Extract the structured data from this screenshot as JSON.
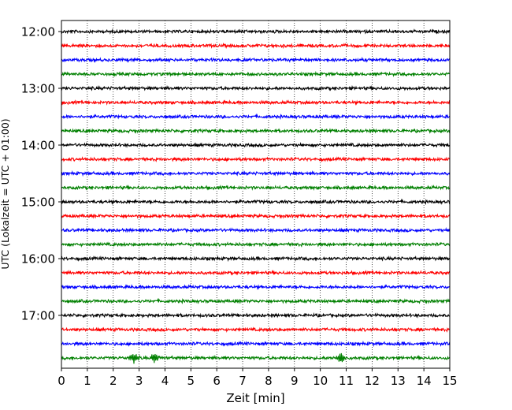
{
  "chart_data": {
    "type": "line",
    "title": "",
    "xlabel": "Zeit  [min]",
    "ylabel": "UTC (Lokalzeit = UTC + 01:00)",
    "xlim": [
      0,
      15
    ],
    "x_ticks": [
      0,
      1,
      2,
      3,
      4,
      5,
      6,
      7,
      8,
      9,
      10,
      11,
      12,
      13,
      14,
      15
    ],
    "x_tick_labels": [
      "0",
      "1",
      "2",
      "3",
      "4",
      "5",
      "6",
      "7",
      "8",
      "9",
      "10",
      "11",
      "12",
      "13",
      "14",
      "15"
    ],
    "y_tick_labels": [
      "12:00",
      "13:00",
      "14:00",
      "15:00",
      "16:00",
      "17:00"
    ],
    "grid": "vertical dotted lines at each minute",
    "colors": [
      "#000000",
      "#ff0000",
      "#0000ff",
      "#008000"
    ],
    "traces": [
      {
        "start": "12:00",
        "color": "#000000"
      },
      {
        "start": "12:15",
        "color": "#ff0000"
      },
      {
        "start": "12:30",
        "color": "#0000ff"
      },
      {
        "start": "12:45",
        "color": "#008000"
      },
      {
        "start": "13:00",
        "color": "#000000"
      },
      {
        "start": "13:15",
        "color": "#ff0000"
      },
      {
        "start": "13:30",
        "color": "#0000ff"
      },
      {
        "start": "13:45",
        "color": "#008000"
      },
      {
        "start": "14:00",
        "color": "#000000"
      },
      {
        "start": "14:15",
        "color": "#ff0000"
      },
      {
        "start": "14:30",
        "color": "#0000ff"
      },
      {
        "start": "14:45",
        "color": "#008000"
      },
      {
        "start": "15:00",
        "color": "#000000"
      },
      {
        "start": "15:15",
        "color": "#ff0000"
      },
      {
        "start": "15:30",
        "color": "#0000ff"
      },
      {
        "start": "15:45",
        "color": "#008000"
      },
      {
        "start": "16:00",
        "color": "#000000"
      },
      {
        "start": "16:15",
        "color": "#ff0000"
      },
      {
        "start": "16:30",
        "color": "#0000ff"
      },
      {
        "start": "16:45",
        "color": "#008000"
      },
      {
        "start": "17:00",
        "color": "#000000"
      },
      {
        "start": "17:15",
        "color": "#ff0000"
      },
      {
        "start": "17:30",
        "color": "#0000ff"
      },
      {
        "start": "17:45",
        "color": "#008000",
        "events": [
          {
            "x": 2.8
          },
          {
            "x": 3.6
          },
          {
            "x": 10.8
          }
        ]
      }
    ]
  }
}
